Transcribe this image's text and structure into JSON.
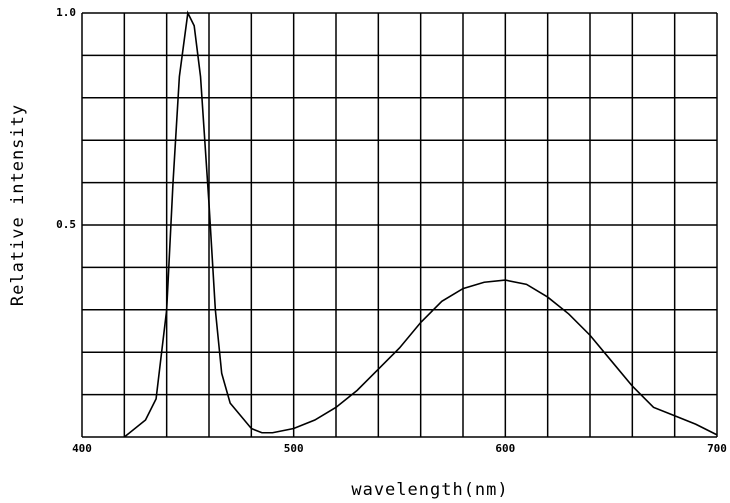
{
  "chart_data": {
    "type": "line",
    "x_label": "wavelength(nm)",
    "y_label": "Relative intensity",
    "x": [
      420,
      430,
      435,
      440,
      443,
      446,
      450,
      453,
      456,
      460,
      463,
      466,
      470,
      480,
      485,
      490,
      500,
      510,
      520,
      530,
      540,
      550,
      560,
      570,
      580,
      590,
      600,
      610,
      620,
      630,
      640,
      650,
      660,
      670,
      680,
      690,
      700
    ],
    "values": [
      0,
      0.04,
      0.09,
      0.3,
      0.6,
      0.85,
      1.0,
      0.97,
      0.85,
      0.55,
      0.3,
      0.15,
      0.08,
      0.02,
      0.01,
      0.01,
      0.02,
      0.04,
      0.07,
      0.11,
      0.16,
      0.21,
      0.27,
      0.32,
      0.35,
      0.365,
      0.37,
      0.36,
      0.33,
      0.29,
      0.24,
      0.18,
      0.12,
      0.07,
      0.05,
      0.03,
      0.005
    ],
    "color": "#000000",
    "xlim": [
      400,
      700
    ],
    "ylim": [
      0,
      1
    ],
    "xticks": [
      400,
      500,
      600,
      700
    ],
    "yticks": [
      0.5,
      {
        "value": 1,
        "label": "1.0"
      }
    ],
    "grid": true,
    "xgrid": [
      400,
      420,
      440,
      460,
      480,
      500,
      520,
      540,
      560,
      580,
      600,
      620,
      640,
      660,
      680,
      700
    ],
    "ygrid": [
      0,
      0.1,
      0.2,
      0.3,
      0.4,
      0.5,
      0.6,
      0.7,
      0.8,
      0.9,
      1
    ]
  }
}
